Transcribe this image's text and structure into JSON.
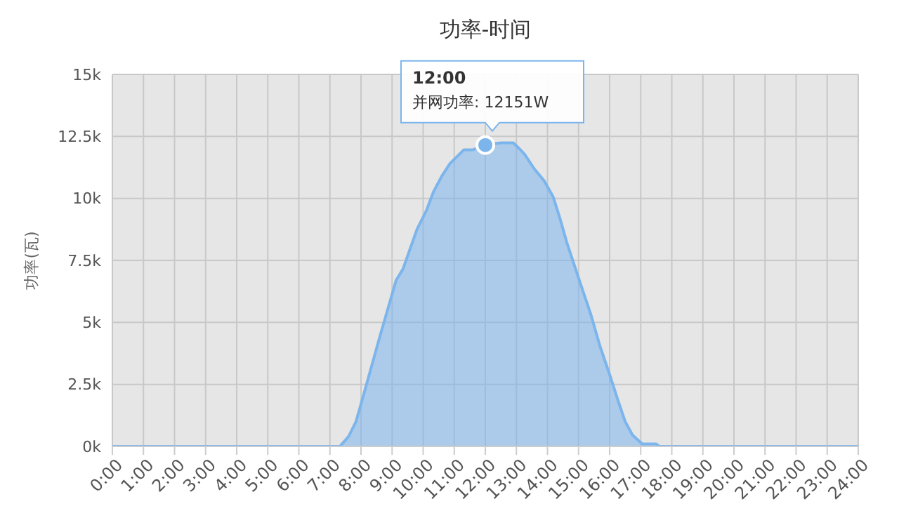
{
  "chart_data": {
    "type": "area",
    "title": "功率-时间",
    "ylabel": "功率(瓦)",
    "x": [
      0,
      7.0,
      7.32,
      7.6,
      7.84,
      8.2,
      8.6,
      9.13,
      9.35,
      9.8,
      10.1,
      10.33,
      10.6,
      10.86,
      11.1,
      11.31,
      11.6,
      11.8,
      12.0,
      12.2,
      12.52,
      12.9,
      13.1,
      13.27,
      13.57,
      13.9,
      14.18,
      14.4,
      14.63,
      15.08,
      15.4,
      15.69,
      16.0,
      16.29,
      16.5,
      16.74,
      17.05,
      17.5,
      17.6,
      24
    ],
    "series": [
      {
        "color": "#7cb5ec",
        "values": [
          0,
          0,
          0,
          400,
          1000,
          2600,
          4400,
          6700,
          7150,
          8750,
          9500,
          10260,
          10900,
          11400,
          11700,
          11960,
          11960,
          12050,
          12151,
          12200,
          12240,
          12240,
          12000,
          11770,
          11200,
          10700,
          10070,
          9200,
          8190,
          6490,
          5300,
          4040,
          2900,
          1770,
          1000,
          450,
          100,
          100,
          0,
          0
        ]
      }
    ],
    "xlim": [
      0,
      24
    ],
    "xticks": [
      {
        "value": 0,
        "label": "0:00"
      },
      {
        "value": 1,
        "label": "1:00"
      },
      {
        "value": 2,
        "label": "2:00"
      },
      {
        "value": 3,
        "label": "3:00"
      },
      {
        "value": 4,
        "label": "4:00"
      },
      {
        "value": 5,
        "label": "5:00"
      },
      {
        "value": 6,
        "label": "6:00"
      },
      {
        "value": 7,
        "label": "7:00"
      },
      {
        "value": 8,
        "label": "8:00"
      },
      {
        "value": 9,
        "label": "9:00"
      },
      {
        "value": 10,
        "label": "10:00"
      },
      {
        "value": 11,
        "label": "11:00"
      },
      {
        "value": 12,
        "label": "12:00"
      },
      {
        "value": 13,
        "label": "13:00"
      },
      {
        "value": 14,
        "label": "14:00"
      },
      {
        "value": 15,
        "label": "15:00"
      },
      {
        "value": 16,
        "label": "16:00"
      },
      {
        "value": 17,
        "label": "17:00"
      },
      {
        "value": 18,
        "label": "18:00"
      },
      {
        "value": 19,
        "label": "19:00"
      },
      {
        "value": 20,
        "label": "20:00"
      },
      {
        "value": 21,
        "label": "21:00"
      },
      {
        "value": 22,
        "label": "22:00"
      },
      {
        "value": 23,
        "label": "23:00"
      },
      {
        "value": 24,
        "label": "24:00"
      }
    ],
    "ylim": [
      0,
      15000
    ],
    "yticks": [
      {
        "value": 0,
        "label": "0k"
      },
      {
        "value": 2500,
        "label": "2.5k"
      },
      {
        "value": 5000,
        "label": "5k"
      },
      {
        "value": 7500,
        "label": "7.5k"
      },
      {
        "value": 10000,
        "label": "10k"
      },
      {
        "value": 12500,
        "label": "12.5k"
      },
      {
        "value": 15000,
        "label": "15k"
      }
    ],
    "grid": true,
    "marker": "none",
    "annotations": [
      "12:00",
      {
        "text": "并网功率: 12151W",
        "x": 12,
        "y": 12151
      }
    ]
  }
}
